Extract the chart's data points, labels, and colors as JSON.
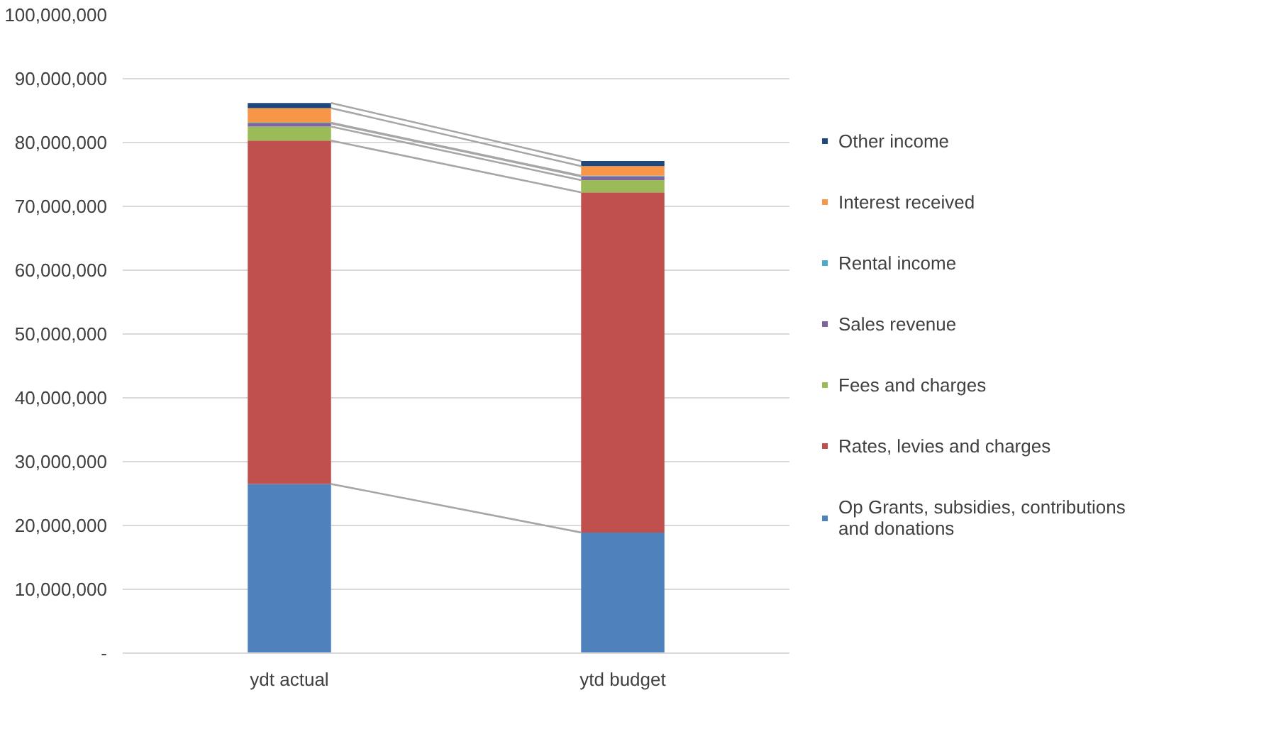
{
  "chart_data": {
    "type": "bar",
    "stacked": true,
    "categories": [
      "ydt actual",
      "ytd budget"
    ],
    "series": [
      {
        "name": "Op Grants, subsidies, contributions and donations",
        "color": "#4f81bd",
        "values": [
          26500000,
          18900000
        ]
      },
      {
        "name": "Rates, levies and charges",
        "color": "#c0504d",
        "values": [
          53800000,
          53300000
        ]
      },
      {
        "name": "Fees and charges",
        "color": "#9bbb59",
        "values": [
          2200000,
          1900000
        ]
      },
      {
        "name": "Sales revenue",
        "color": "#8064a2",
        "values": [
          500000,
          600000
        ]
      },
      {
        "name": "Rental income",
        "color": "#4bacc6",
        "values": [
          100000,
          100000
        ]
      },
      {
        "name": "Interest received",
        "color": "#f79646",
        "values": [
          2300000,
          1500000
        ]
      },
      {
        "name": "Other income",
        "color": "#1f497d",
        "values": [
          800000,
          800000
        ]
      }
    ],
    "ylim": [
      0,
      100000000
    ],
    "yticks": [
      {
        "value": 0,
        "label": "-"
      },
      {
        "value": 10000000,
        "label": "10,000,000"
      },
      {
        "value": 20000000,
        "label": "20,000,000"
      },
      {
        "value": 30000000,
        "label": "30,000,000"
      },
      {
        "value": 40000000,
        "label": "40,000,000"
      },
      {
        "value": 50000000,
        "label": "50,000,000"
      },
      {
        "value": 60000000,
        "label": "60,000,000"
      },
      {
        "value": 70000000,
        "label": "70,000,000"
      },
      {
        "value": 80000000,
        "label": "80,000,000"
      },
      {
        "value": 90000000,
        "label": "90,000,000"
      },
      {
        "value": 100000000,
        "label": "100,000,000"
      }
    ],
    "grid": "y",
    "legend": "right"
  }
}
